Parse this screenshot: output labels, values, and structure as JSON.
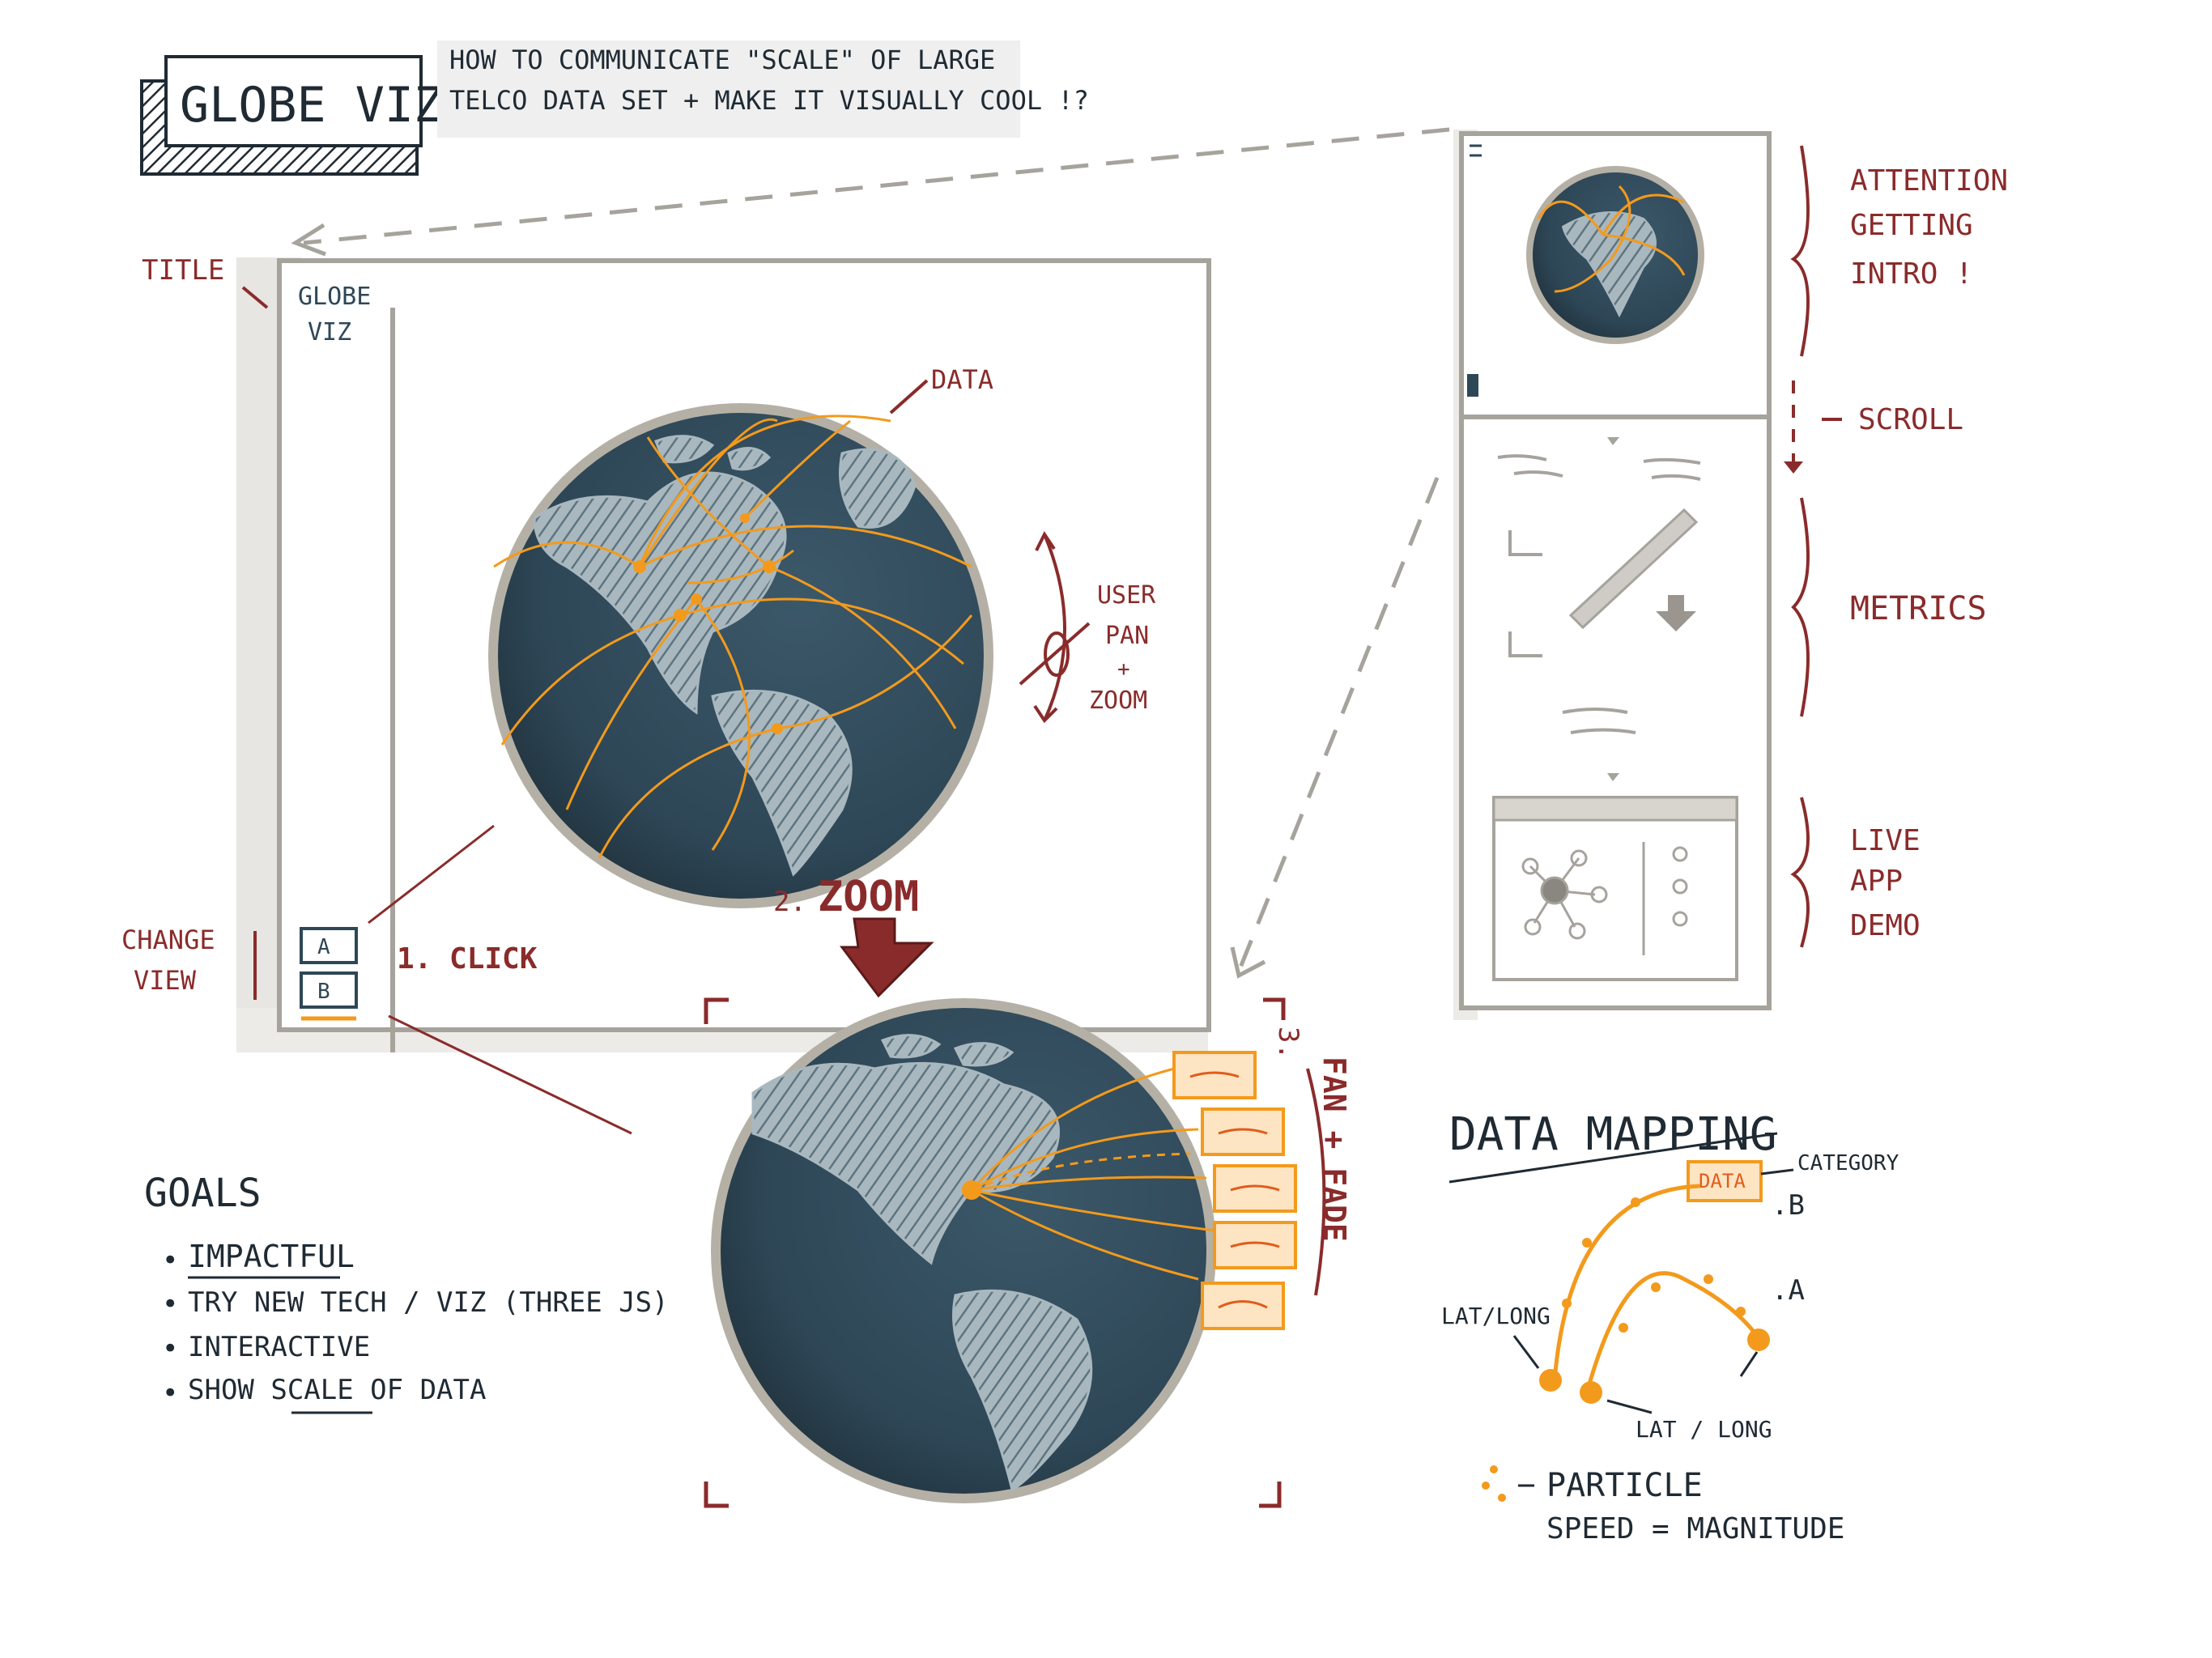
{
  "header": {
    "title": "GLOBE VIZ",
    "question_line1": "HOW TO COMMUNICATE \"SCALE\" OF LARGE",
    "question_line2": "TELCO DATA SET + MAKE IT VISUALLY COOL !?"
  },
  "main_sketch": {
    "title_callout": "TITLE",
    "app_title_line1": "GLOBE",
    "app_title_line2": "VIZ",
    "data_callout": "DATA",
    "pan_zoom": [
      "USER",
      "PAN",
      "+",
      "ZOOM"
    ],
    "change_view": [
      "CHANGE",
      "VIEW"
    ],
    "view_buttons": [
      "A",
      "B"
    ],
    "step1": "1. CLICK",
    "step2_num": "2.",
    "step2": "ZOOM",
    "step3_num": "3.",
    "step3": "FAN + FADE"
  },
  "story_panel": {
    "sections": [
      "ATTENTION",
      "GETTING",
      "INTRO !"
    ],
    "scroll": "SCROLL",
    "metrics": "METRICS",
    "live": [
      "LIVE",
      "APP",
      "DEMO"
    ]
  },
  "goals": {
    "title": "GOALS",
    "items": [
      "IMPACTFUL",
      "TRY NEW TECH / VIZ (THREE JS)",
      "INTERACTIVE",
      "SHOW SCALE OF DATA"
    ]
  },
  "data_mapping": {
    "title": "DATA MAPPING",
    "data_box": "DATA",
    "category": "CATEGORY",
    "b_label": ".B",
    "a_label": ".A",
    "latlong1": "LAT/LONG",
    "latlong2": "LAT / LONG",
    "particle": "PARTICLE",
    "speed": "SPEED = MAGNITUDE"
  },
  "colors": {
    "ink": "#1f2a33",
    "accent_red": "#8a2b2b",
    "data_orange": "#f39a1c",
    "globe_navy": "#2e4757",
    "land_grey": "#a9b8bf",
    "frame_grey": "#a6a39c"
  }
}
